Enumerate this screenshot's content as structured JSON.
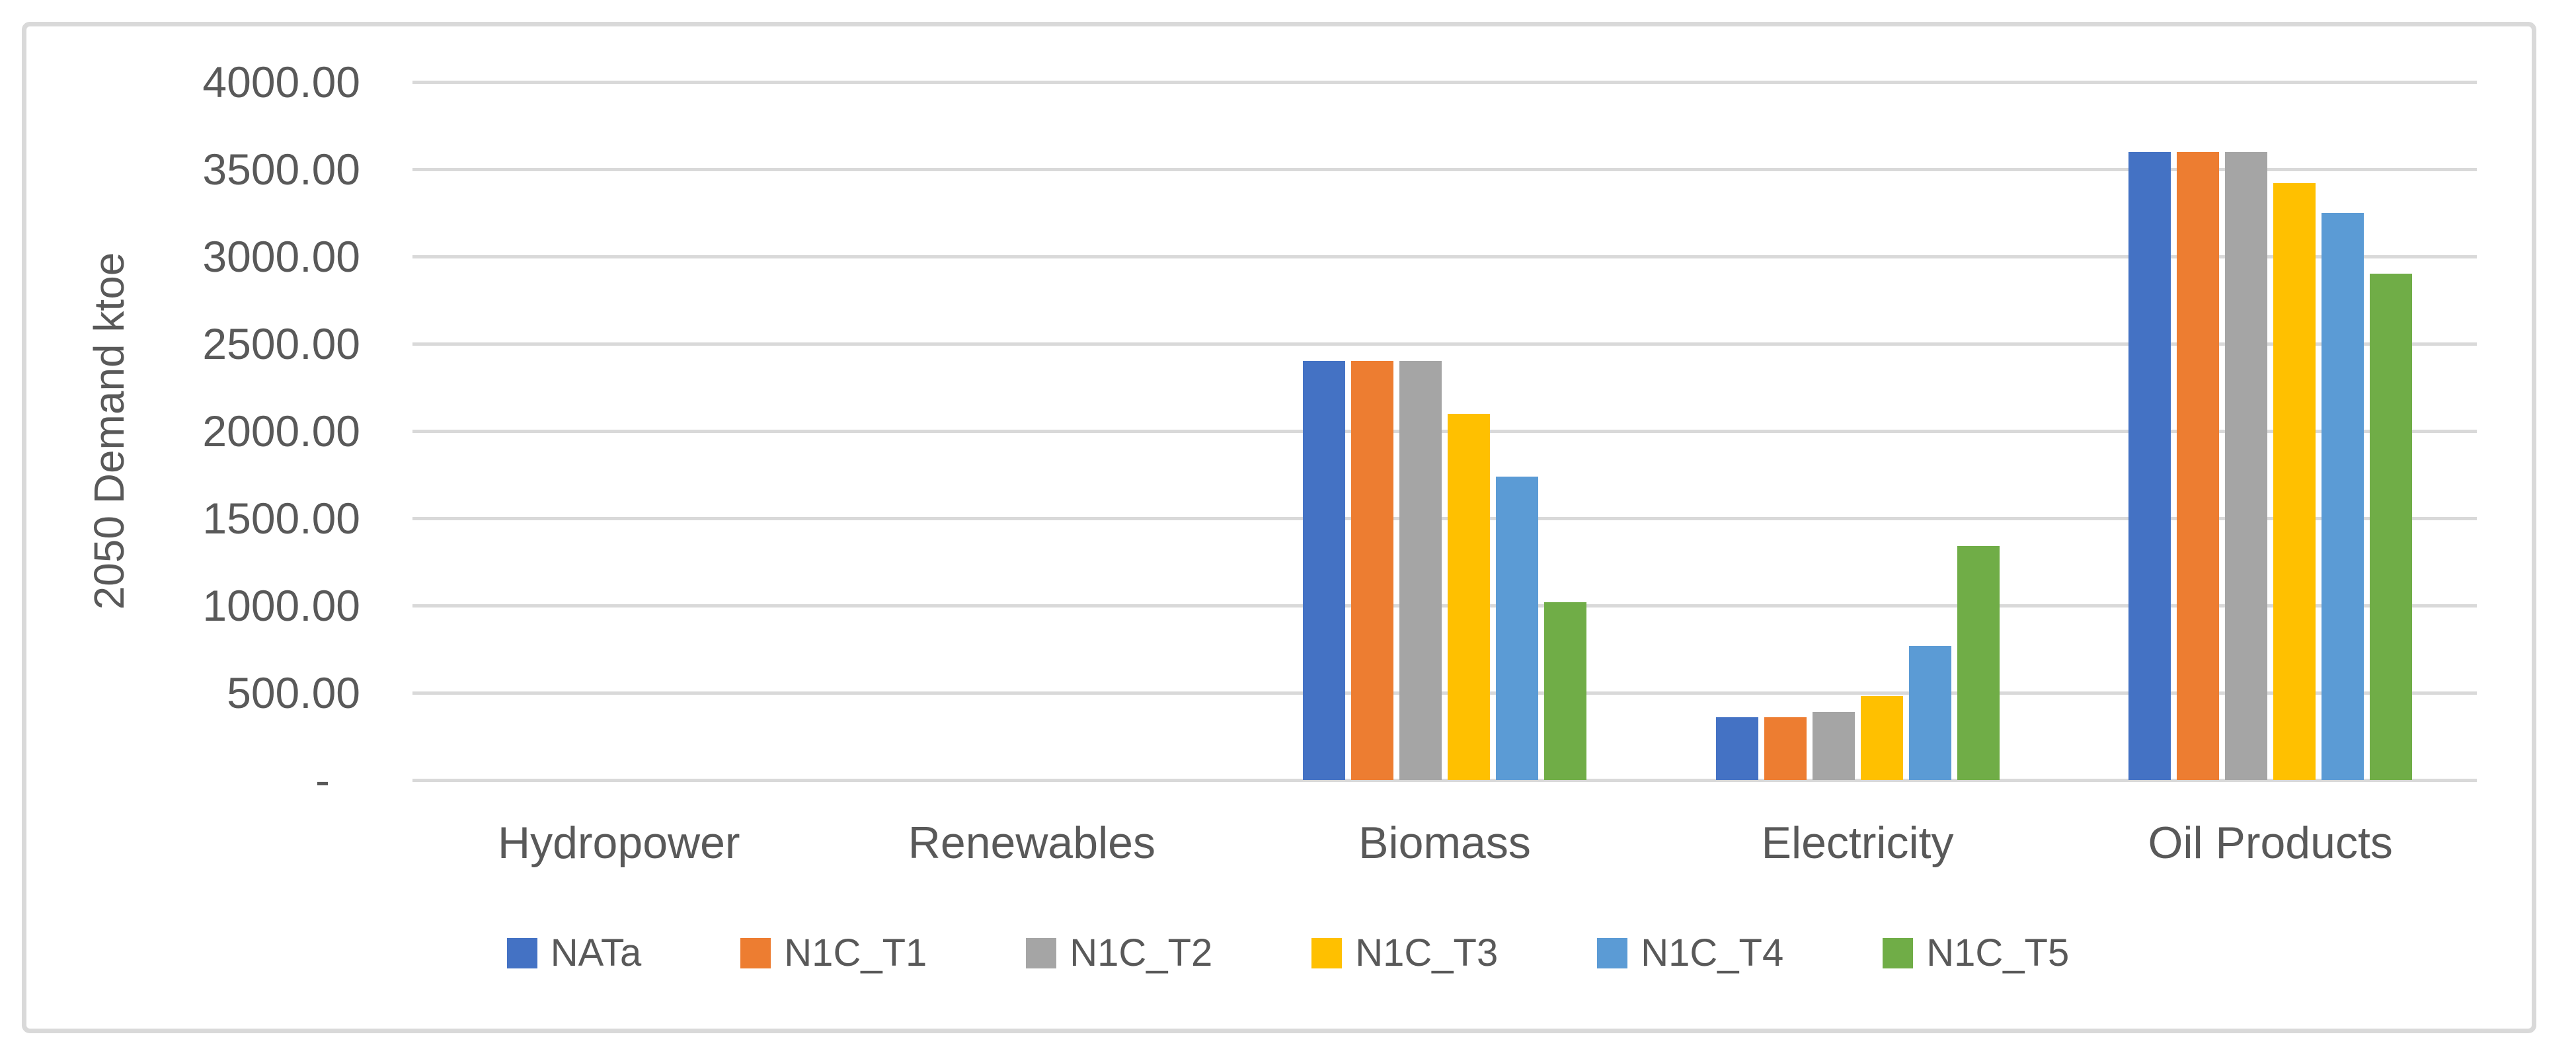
{
  "chart_data": {
    "type": "bar",
    "title": "",
    "xlabel": "",
    "ylabel": "2050 Demand ktoe",
    "categories": [
      "Hydropower",
      "Renewables",
      "Biomass",
      "Electricity",
      "Oil Products"
    ],
    "series": [
      {
        "name": "NATa",
        "color": "#4472C4",
        "values": [
          0,
          0,
          2400,
          360,
          3600
        ]
      },
      {
        "name": "N1C_T1",
        "color": "#ED7D31",
        "values": [
          0,
          0,
          2400,
          360,
          3600
        ]
      },
      {
        "name": "N1C_T2",
        "color": "#A5A5A5",
        "values": [
          0,
          0,
          2400,
          390,
          3600
        ]
      },
      {
        "name": "N1C_T3",
        "color": "#FFC000",
        "values": [
          0,
          0,
          2100,
          480,
          3420
        ]
      },
      {
        "name": "N1C_T4",
        "color": "#5B9BD5",
        "values": [
          0,
          0,
          1740,
          770,
          3250
        ]
      },
      {
        "name": "N1C_T5",
        "color": "#70AD47",
        "values": [
          0,
          0,
          1020,
          1340,
          2900
        ]
      }
    ],
    "ylim": [
      0,
      4000
    ],
    "ytick_step": 500,
    "ytick_labels": [
      "4000.00",
      "3500.00",
      "3000.00",
      "2500.00",
      "2000.00",
      "1500.00",
      "1000.00",
      "500.00",
      "-"
    ],
    "grid": true,
    "legend_position": "bottom",
    "colors": {
      "grid": "#D9D9D9",
      "border": "#D9D9D9",
      "text": "#595959",
      "background": "#FFFFFF"
    }
  }
}
